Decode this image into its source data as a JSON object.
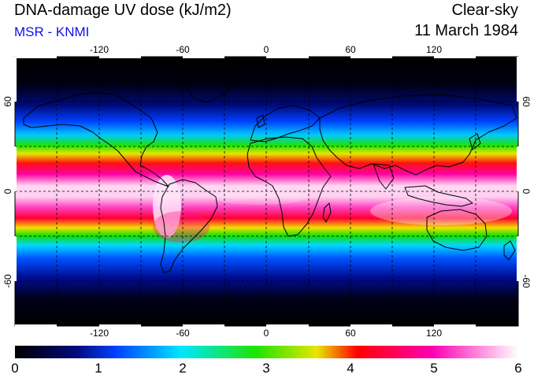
{
  "header": {
    "title": "DNA-damage UV dose (kJ/m2)",
    "source": "MSR - KNMI",
    "condition": "Clear-sky",
    "date": "11 March 1984"
  },
  "map": {
    "projection": "equirectangular",
    "lon_range": [
      -180,
      180
    ],
    "lat_range": [
      -90,
      90
    ],
    "lon_ticks": [
      "-120",
      "-60",
      "0",
      "60",
      "120"
    ],
    "lat_ticks": [
      "60",
      "0",
      "-60"
    ],
    "gridlines": "dashed every 30 degrees"
  },
  "colorbar": {
    "min": 0,
    "max": 6,
    "tick_labels": [
      "0",
      "1",
      "2",
      "3",
      "4",
      "5",
      "6"
    ],
    "colors": [
      "#000000",
      "#000a78",
      "#0040ff",
      "#00e6ff",
      "#1ee400",
      "#e8e600",
      "#ff0000",
      "#ff00b4",
      "#ffffff"
    ]
  }
}
